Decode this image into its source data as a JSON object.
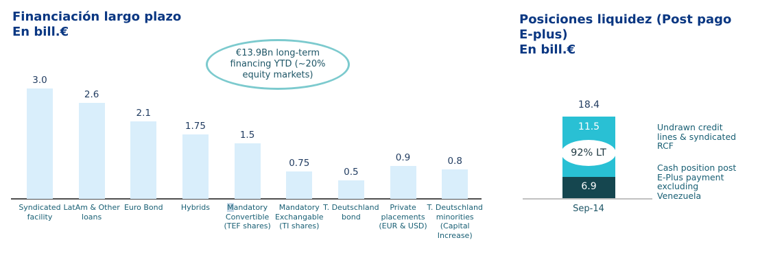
{
  "left_chart": {
    "title": "Financiación largo plazo",
    "subtitle": "En bill.€"
  },
  "right_chart": {
    "title_lines": [
      "Posiciones liquidez (Post pago",
      "E-plus)"
    ],
    "subtitle": "En bill.€"
  },
  "colors": {
    "title_navy": "#0a3782",
    "bar_light_blue": "#d9eefb",
    "stack_cyan": "#29c0d4",
    "stack_dark_teal": "#15464f",
    "label_teal": "#175e73",
    "value_navy": "#1f3a5f",
    "ellipse_stroke": "#7ccace",
    "axis_left": "#4d4d4d",
    "axis_right": "#c0c0c0"
  },
  "chart_data": [
    {
      "type": "bar",
      "title": "Financiación largo plazo",
      "subtitle": "En bill.€",
      "ylabel": "bill.€",
      "categories": [
        "Syndicated facility",
        "LatAm & Other loans",
        "Euro Bond",
        "Hybrids",
        "Mandatory Convertible (TEF shares)",
        "Mandatory Exchangable (TI shares)",
        "T. Deutschland bond",
        "Private placements (EUR & USD)",
        "T. Deutschland minorities (Capital Increase)"
      ],
      "values": [
        3.0,
        2.6,
        2.1,
        1.75,
        1.5,
        0.75,
        0.5,
        0.9,
        0.8
      ],
      "value_labels": [
        "3.0",
        "2.6",
        "2.1",
        "1.75",
        "1.5",
        "0.75",
        "0.5",
        "0.9",
        "0.8"
      ],
      "highlighted_category_index": 4,
      "annotation": "€13.9Bn long-term financing YTD (~20% equity markets)",
      "bar_color": "#d9eefb",
      "ylim": [
        0,
        3.2
      ],
      "grid": false,
      "legend_position": "none"
    },
    {
      "type": "bar",
      "stacked": true,
      "title": "Posiciones liquidez (Post pago E-plus)",
      "subtitle": "En bill.€",
      "categories": [
        "Sep-14"
      ],
      "series": [
        {
          "name": "Undrawn credit lines & syndicated RCF",
          "values": [
            11.5
          ],
          "label": "11.5",
          "color": "#29c0d4"
        },
        {
          "name": "Cash position post E-Plus payment excluding Venezuela",
          "values": [
            6.9
          ],
          "label": "6.9",
          "color": "#15464f"
        }
      ],
      "total": 18.4,
      "total_label": "18.4",
      "annotation": "92% LT",
      "ylim": [
        0,
        20
      ],
      "grid": false,
      "legend_position": "right"
    }
  ]
}
